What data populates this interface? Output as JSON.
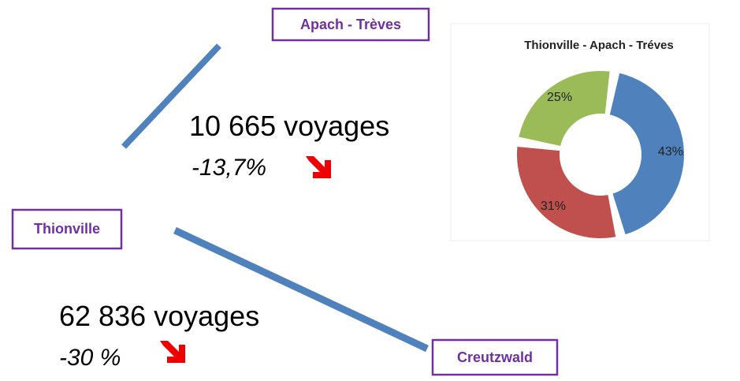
{
  "nodes": [
    {
      "label": "Apach - Trèves"
    },
    {
      "label": "Thionville"
    },
    {
      "label": "Creutzwald"
    }
  ],
  "routes": [
    {
      "trips": "10 665 voyages",
      "change": "-13,7%"
    },
    {
      "trips": "62 836 voyages",
      "change": "-30 %"
    }
  ],
  "chart_data": {
    "type": "donut",
    "title": "Thionville - Apach - Tréves",
    "values": [
      43,
      31,
      25
    ],
    "value_labels": [
      "43%",
      "31%",
      "25%"
    ],
    "colors": [
      "#4f81bd",
      "#c0504d",
      "#9bbb59"
    ]
  }
}
